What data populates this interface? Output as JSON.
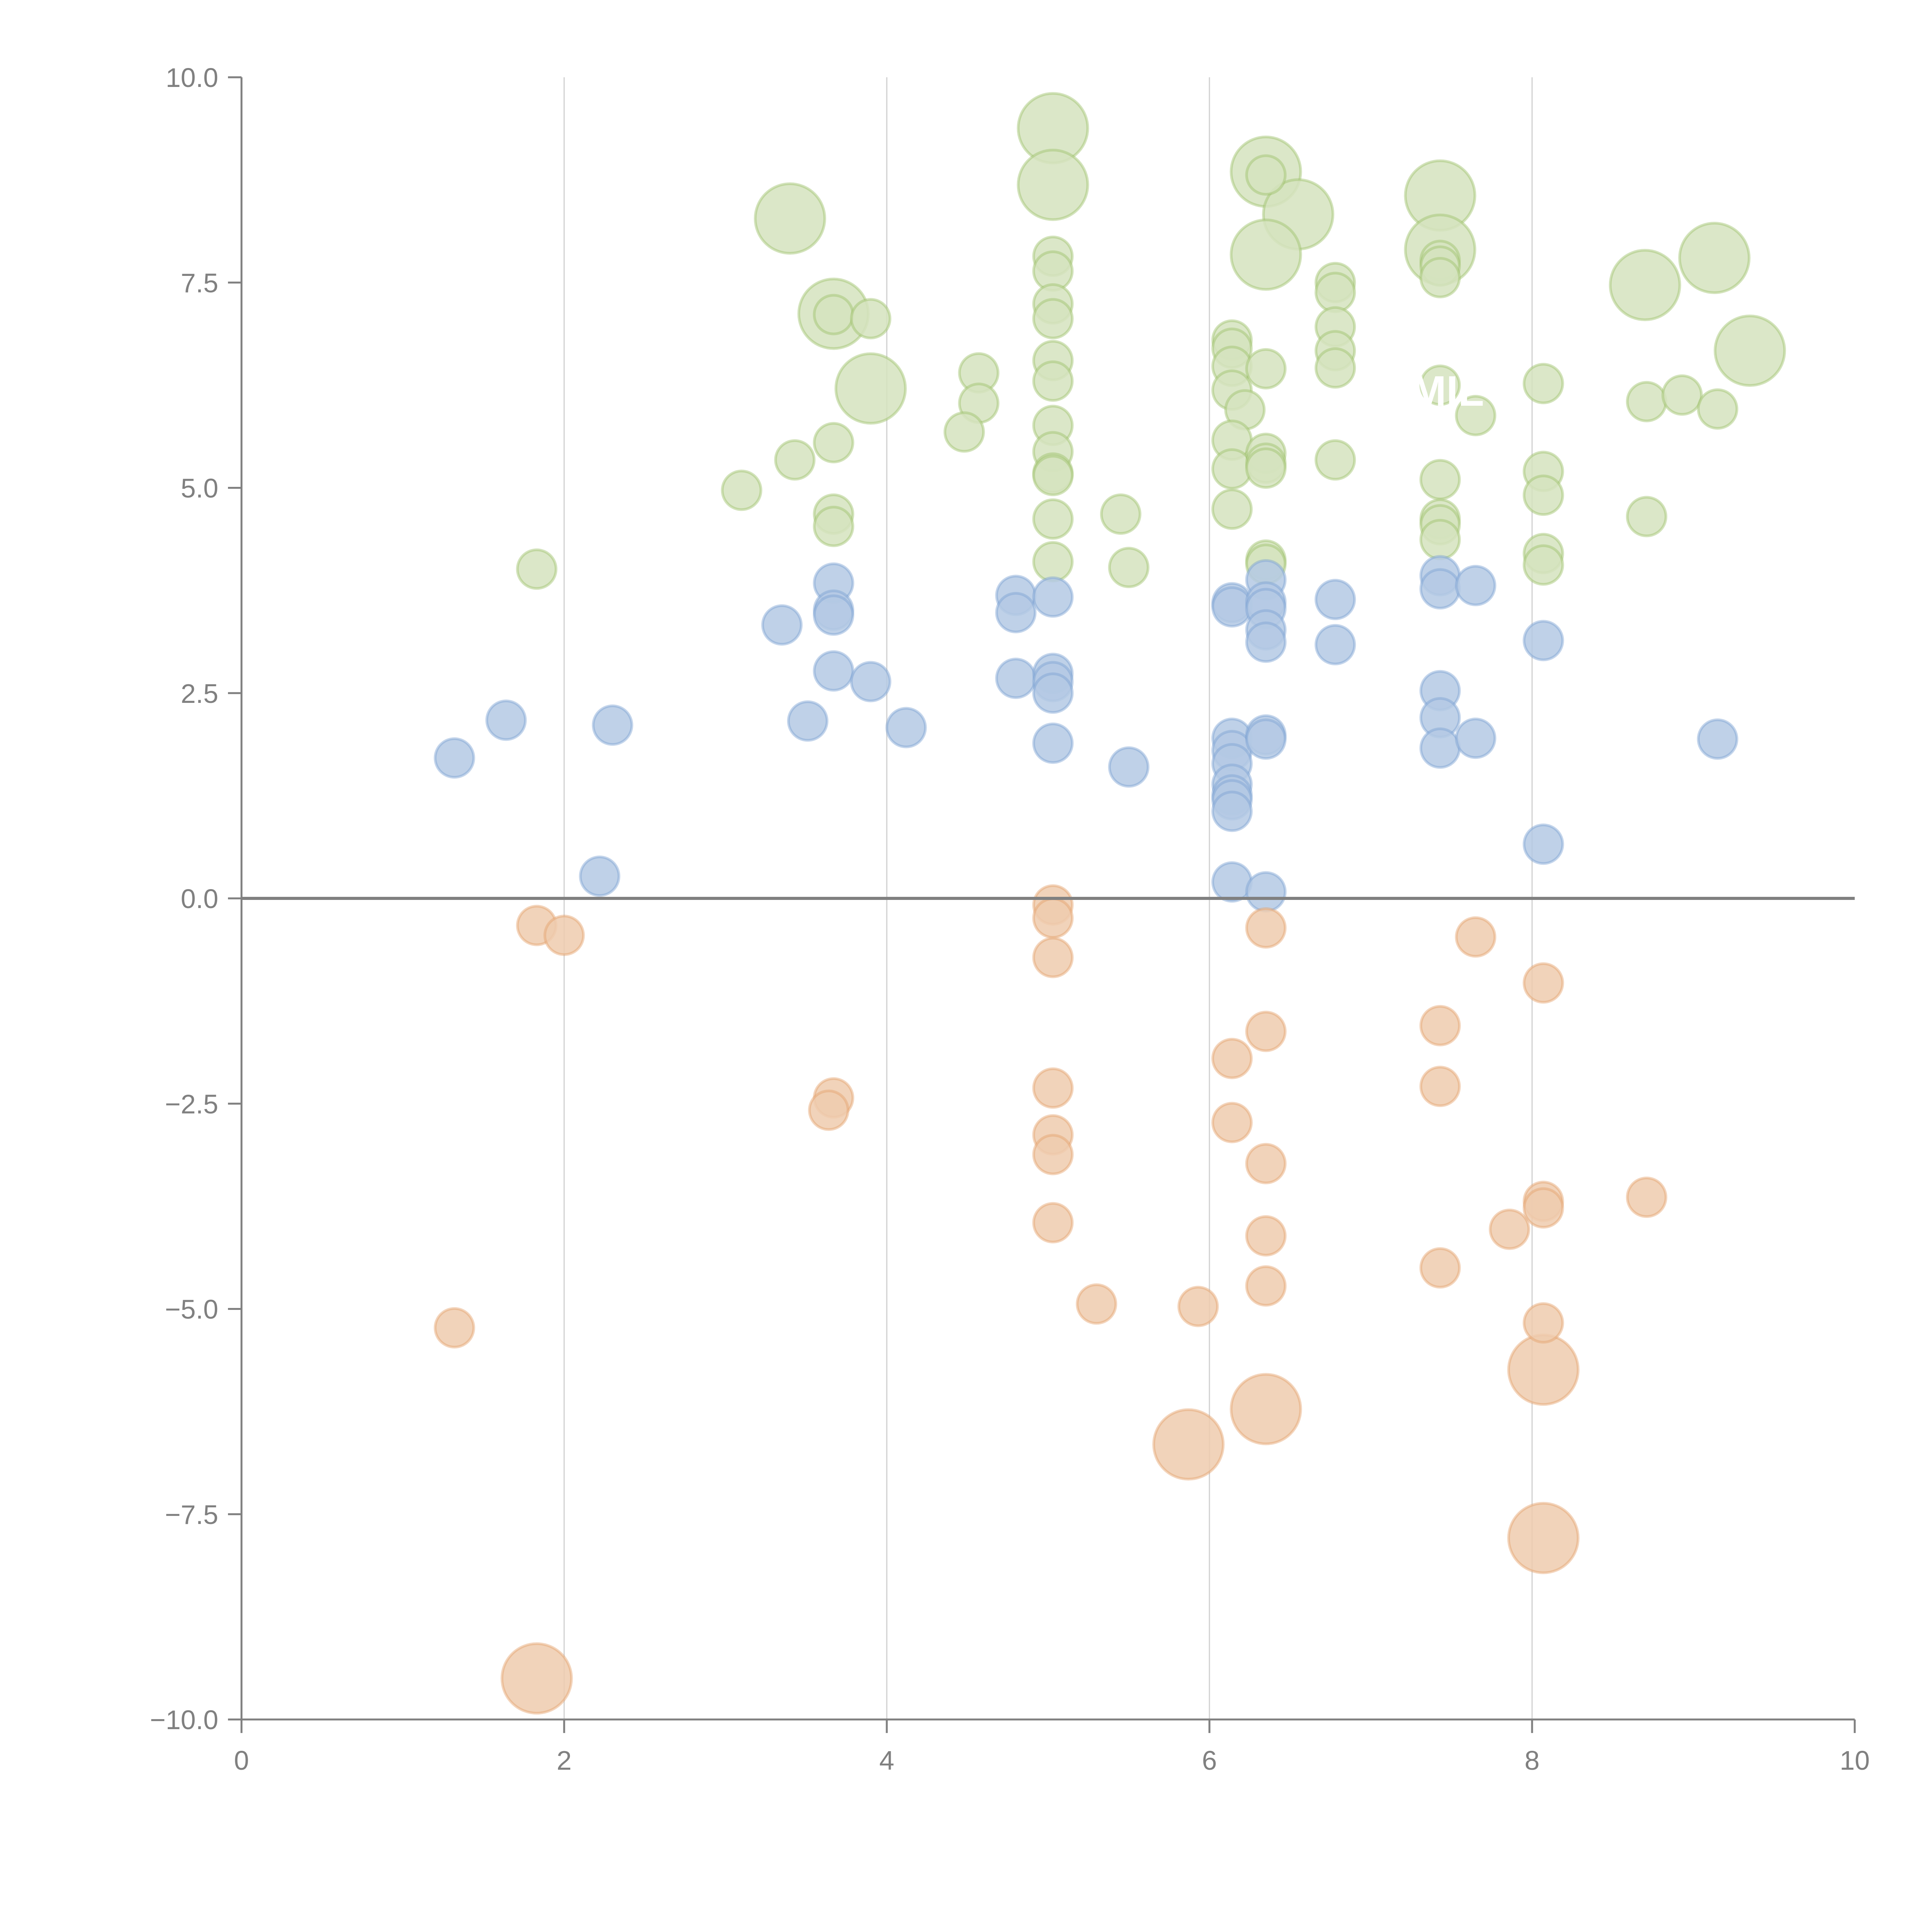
{
  "chart_data": {
    "type": "scatter",
    "title": "",
    "xlabel": "",
    "ylabel": "",
    "xlim": [
      0,
      10
    ],
    "ylim": [
      -10,
      10
    ],
    "x_ticks": [
      "0",
      "2",
      "4",
      "6",
      "8",
      "10"
    ],
    "x_tick_values": [
      0,
      2,
      4,
      6,
      8,
      10
    ],
    "y_ticks": [
      "10.0",
      "7.5",
      "5.0",
      "2.5",
      "0.0",
      "−2.5",
      "−5.0",
      "−7.5",
      "−10.0"
    ],
    "y_tick_values": [
      10,
      7.5,
      5,
      2.5,
      0,
      -2.5,
      -5,
      -7.5,
      -10
    ],
    "grid": {
      "vertical": true,
      "horizontal": false,
      "vertical_at": [
        2,
        4,
        6,
        8
      ]
    },
    "reference_line_y": 0,
    "legend": "none",
    "annotation": "MIL A",
    "annotation_at": {
      "x": 7.6,
      "y": 6.0
    },
    "series": [
      {
        "name": "green",
        "color": "#9dc26b",
        "fill": "#d5e3be",
        "points": [
          {
            "x": 5.03,
            "y": 9.38,
            "size": 3
          },
          {
            "x": 5.03,
            "y": 8.69,
            "size": 3
          },
          {
            "x": 3.4,
            "y": 8.28,
            "size": 3
          },
          {
            "x": 6.35,
            "y": 8.85,
            "size": 3
          },
          {
            "x": 6.55,
            "y": 8.33,
            "size": 3
          },
          {
            "x": 6.35,
            "y": 7.84,
            "size": 3
          },
          {
            "x": 7.43,
            "y": 8.56,
            "size": 3
          },
          {
            "x": 7.43,
            "y": 7.9,
            "size": 3
          },
          {
            "x": 3.67,
            "y": 7.12,
            "size": 3
          },
          {
            "x": 3.9,
            "y": 6.21,
            "size": 3
          },
          {
            "x": 8.7,
            "y": 7.47,
            "size": 3
          },
          {
            "x": 9.13,
            "y": 7.8,
            "size": 3
          },
          {
            "x": 9.35,
            "y": 6.67,
            "size": 3
          },
          {
            "x": 5.03,
            "y": 7.82,
            "size": 1
          },
          {
            "x": 5.03,
            "y": 7.64,
            "size": 1
          },
          {
            "x": 5.03,
            "y": 7.24,
            "size": 1
          },
          {
            "x": 5.03,
            "y": 7.06,
            "size": 1
          },
          {
            "x": 5.03,
            "y": 6.55,
            "size": 1
          },
          {
            "x": 5.03,
            "y": 6.3,
            "size": 1
          },
          {
            "x": 5.03,
            "y": 5.76,
            "size": 1
          },
          {
            "x": 5.03,
            "y": 5.44,
            "size": 1
          },
          {
            "x": 5.03,
            "y": 5.18,
            "size": 1
          },
          {
            "x": 5.03,
            "y": 5.15,
            "size": 1
          },
          {
            "x": 5.03,
            "y": 4.62,
            "size": 1
          },
          {
            "x": 5.03,
            "y": 4.1,
            "size": 1
          },
          {
            "x": 3.67,
            "y": 7.11,
            "size": 1
          },
          {
            "x": 3.9,
            "y": 7.06,
            "size": 1
          },
          {
            "x": 4.57,
            "y": 6.4,
            "size": 1
          },
          {
            "x": 4.57,
            "y": 6.03,
            "size": 1
          },
          {
            "x": 4.48,
            "y": 5.68,
            "size": 1
          },
          {
            "x": 3.67,
            "y": 5.55,
            "size": 1
          },
          {
            "x": 3.43,
            "y": 5.34,
            "size": 1
          },
          {
            "x": 3.1,
            "y": 4.97,
            "size": 1
          },
          {
            "x": 3.67,
            "y": 4.68,
            "size": 1
          },
          {
            "x": 3.67,
            "y": 4.53,
            "size": 1
          },
          {
            "x": 1.83,
            "y": 4.01,
            "size": 1
          },
          {
            "x": 5.45,
            "y": 4.68,
            "size": 1
          },
          {
            "x": 5.5,
            "y": 4.03,
            "size": 1
          },
          {
            "x": 6.14,
            "y": 6.8,
            "size": 1
          },
          {
            "x": 6.14,
            "y": 6.7,
            "size": 1
          },
          {
            "x": 6.14,
            "y": 6.48,
            "size": 1
          },
          {
            "x": 6.14,
            "y": 6.19,
            "size": 1
          },
          {
            "x": 6.22,
            "y": 5.95,
            "size": 1
          },
          {
            "x": 6.14,
            "y": 5.58,
            "size": 1
          },
          {
            "x": 6.14,
            "y": 5.23,
            "size": 1
          },
          {
            "x": 6.14,
            "y": 4.74,
            "size": 1
          },
          {
            "x": 6.35,
            "y": 6.45,
            "size": 1
          },
          {
            "x": 6.35,
            "y": 5.42,
            "size": 1
          },
          {
            "x": 6.35,
            "y": 5.3,
            "size": 1
          },
          {
            "x": 6.35,
            "y": 5.24,
            "size": 1
          },
          {
            "x": 6.35,
            "y": 4.12,
            "size": 1
          },
          {
            "x": 6.35,
            "y": 4.07,
            "size": 1
          },
          {
            "x": 6.35,
            "y": 8.81,
            "size": 1
          },
          {
            "x": 6.78,
            "y": 7.5,
            "size": 1
          },
          {
            "x": 6.78,
            "y": 7.38,
            "size": 1
          },
          {
            "x": 6.78,
            "y": 6.96,
            "size": 1
          },
          {
            "x": 6.78,
            "y": 6.67,
            "size": 1
          },
          {
            "x": 6.78,
            "y": 6.46,
            "size": 1
          },
          {
            "x": 6.78,
            "y": 5.34,
            "size": 1
          },
          {
            "x": 7.43,
            "y": 7.77,
            "size": 1
          },
          {
            "x": 7.43,
            "y": 7.7,
            "size": 1
          },
          {
            "x": 7.43,
            "y": 7.56,
            "size": 1
          },
          {
            "x": 7.43,
            "y": 6.25,
            "size": 1
          },
          {
            "x": 7.43,
            "y": 5.1,
            "size": 1
          },
          {
            "x": 7.43,
            "y": 4.62,
            "size": 1
          },
          {
            "x": 7.43,
            "y": 4.55,
            "size": 1
          },
          {
            "x": 7.43,
            "y": 4.37,
            "size": 1
          },
          {
            "x": 7.65,
            "y": 5.88,
            "size": 1
          },
          {
            "x": 8.07,
            "y": 6.27,
            "size": 1
          },
          {
            "x": 8.07,
            "y": 5.2,
            "size": 1
          },
          {
            "x": 8.07,
            "y": 4.91,
            "size": 1
          },
          {
            "x": 8.07,
            "y": 4.2,
            "size": 1
          },
          {
            "x": 8.07,
            "y": 4.06,
            "size": 1
          },
          {
            "x": 8.71,
            "y": 6.05,
            "size": 1
          },
          {
            "x": 8.93,
            "y": 6.13,
            "size": 1
          },
          {
            "x": 9.15,
            "y": 5.96,
            "size": 1
          },
          {
            "x": 8.71,
            "y": 4.65,
            "size": 1
          }
        ]
      },
      {
        "name": "blue",
        "color": "#7ca2d3",
        "fill": "#b4c9e4",
        "points": [
          {
            "x": 1.32,
            "y": 1.71,
            "size": 1
          },
          {
            "x": 1.64,
            "y": 2.17,
            "size": 1
          },
          {
            "x": 2.3,
            "y": 2.11,
            "size": 1
          },
          {
            "x": 2.22,
            "y": 0.27,
            "size": 1
          },
          {
            "x": 3.35,
            "y": 3.33,
            "size": 1
          },
          {
            "x": 3.67,
            "y": 3.84,
            "size": 1
          },
          {
            "x": 3.67,
            "y": 3.51,
            "size": 1
          },
          {
            "x": 3.67,
            "y": 3.45,
            "size": 1
          },
          {
            "x": 3.67,
            "y": 2.77,
            "size": 1
          },
          {
            "x": 3.9,
            "y": 2.64,
            "size": 1
          },
          {
            "x": 3.51,
            "y": 2.16,
            "size": 1
          },
          {
            "x": 4.12,
            "y": 2.08,
            "size": 1
          },
          {
            "x": 4.8,
            "y": 3.69,
            "size": 1
          },
          {
            "x": 4.8,
            "y": 3.48,
            "size": 1
          },
          {
            "x": 4.8,
            "y": 2.68,
            "size": 1
          },
          {
            "x": 5.03,
            "y": 3.67,
            "size": 1
          },
          {
            "x": 5.03,
            "y": 2.74,
            "size": 1
          },
          {
            "x": 5.03,
            "y": 2.64,
            "size": 1
          },
          {
            "x": 5.03,
            "y": 2.5,
            "size": 1
          },
          {
            "x": 5.03,
            "y": 1.89,
            "size": 1
          },
          {
            "x": 5.5,
            "y": 1.6,
            "size": 1
          },
          {
            "x": 6.14,
            "y": 3.6,
            "size": 1
          },
          {
            "x": 6.14,
            "y": 3.55,
            "size": 1
          },
          {
            "x": 6.14,
            "y": 1.95,
            "size": 1
          },
          {
            "x": 6.14,
            "y": 1.8,
            "size": 1
          },
          {
            "x": 6.14,
            "y": 1.64,
            "size": 1
          },
          {
            "x": 6.14,
            "y": 1.39,
            "size": 1
          },
          {
            "x": 6.14,
            "y": 1.26,
            "size": 1
          },
          {
            "x": 6.14,
            "y": 1.2,
            "size": 1
          },
          {
            "x": 6.14,
            "y": 1.06,
            "size": 1
          },
          {
            "x": 6.14,
            "y": 0.2,
            "size": 1
          },
          {
            "x": 6.35,
            "y": 3.88,
            "size": 1
          },
          {
            "x": 6.35,
            "y": 3.61,
            "size": 1
          },
          {
            "x": 6.35,
            "y": 3.53,
            "size": 1
          },
          {
            "x": 6.35,
            "y": 3.27,
            "size": 1
          },
          {
            "x": 6.35,
            "y": 3.12,
            "size": 1
          },
          {
            "x": 6.35,
            "y": 1.99,
            "size": 1
          },
          {
            "x": 6.35,
            "y": 1.94,
            "size": 1
          },
          {
            "x": 6.35,
            "y": 0.08,
            "size": 1
          },
          {
            "x": 6.78,
            "y": 3.64,
            "size": 1
          },
          {
            "x": 6.78,
            "y": 3.09,
            "size": 1
          },
          {
            "x": 7.43,
            "y": 3.93,
            "size": 1
          },
          {
            "x": 7.43,
            "y": 3.77,
            "size": 1
          },
          {
            "x": 7.43,
            "y": 2.53,
            "size": 1
          },
          {
            "x": 7.43,
            "y": 2.2,
            "size": 1
          },
          {
            "x": 7.43,
            "y": 1.83,
            "size": 1
          },
          {
            "x": 7.65,
            "y": 3.81,
            "size": 1
          },
          {
            "x": 7.65,
            "y": 1.95,
            "size": 1
          },
          {
            "x": 8.07,
            "y": 3.14,
            "size": 1
          },
          {
            "x": 8.07,
            "y": 0.66,
            "size": 1
          },
          {
            "x": 9.15,
            "y": 1.94,
            "size": 1
          }
        ]
      },
      {
        "name": "orange",
        "color": "#e4a26c",
        "fill": "#efcbae",
        "points": [
          {
            "x": 1.83,
            "y": -9.5,
            "size": 3
          },
          {
            "x": 5.87,
            "y": -6.65,
            "size": 3
          },
          {
            "x": 6.35,
            "y": -6.22,
            "size": 3
          },
          {
            "x": 8.07,
            "y": -5.74,
            "size": 3
          },
          {
            "x": 8.07,
            "y": -7.79,
            "size": 3
          },
          {
            "x": 1.83,
            "y": -0.33,
            "size": 1
          },
          {
            "x": 2.0,
            "y": -0.45,
            "size": 1
          },
          {
            "x": 1.32,
            "y": -5.23,
            "size": 1
          },
          {
            "x": 3.67,
            "y": -2.43,
            "size": 1
          },
          {
            "x": 3.64,
            "y": -2.58,
            "size": 1
          },
          {
            "x": 5.03,
            "y": -0.08,
            "size": 1
          },
          {
            "x": 5.03,
            "y": -0.24,
            "size": 1
          },
          {
            "x": 5.03,
            "y": -0.72,
            "size": 1
          },
          {
            "x": 5.03,
            "y": -2.31,
            "size": 1
          },
          {
            "x": 5.03,
            "y": -2.88,
            "size": 1
          },
          {
            "x": 5.03,
            "y": -3.12,
            "size": 1
          },
          {
            "x": 5.03,
            "y": -3.95,
            "size": 1
          },
          {
            "x": 5.3,
            "y": -4.94,
            "size": 1
          },
          {
            "x": 5.93,
            "y": -4.97,
            "size": 1
          },
          {
            "x": 6.14,
            "y": -1.95,
            "size": 1
          },
          {
            "x": 6.14,
            "y": -2.73,
            "size": 1
          },
          {
            "x": 6.35,
            "y": -0.36,
            "size": 1
          },
          {
            "x": 6.35,
            "y": -1.62,
            "size": 1
          },
          {
            "x": 6.35,
            "y": -3.23,
            "size": 1
          },
          {
            "x": 6.35,
            "y": -4.11,
            "size": 1
          },
          {
            "x": 6.35,
            "y": -4.72,
            "size": 1
          },
          {
            "x": 7.43,
            "y": -1.55,
            "size": 1
          },
          {
            "x": 7.43,
            "y": -2.29,
            "size": 1
          },
          {
            "x": 7.43,
            "y": -4.5,
            "size": 1
          },
          {
            "x": 7.65,
            "y": -0.47,
            "size": 1
          },
          {
            "x": 7.86,
            "y": -4.03,
            "size": 1
          },
          {
            "x": 8.07,
            "y": -1.03,
            "size": 1
          },
          {
            "x": 8.07,
            "y": -3.69,
            "size": 1
          },
          {
            "x": 8.07,
            "y": -3.77,
            "size": 1
          },
          {
            "x": 8.07,
            "y": -5.17,
            "size": 1
          },
          {
            "x": 8.71,
            "y": -3.64,
            "size": 1
          }
        ]
      }
    ]
  }
}
